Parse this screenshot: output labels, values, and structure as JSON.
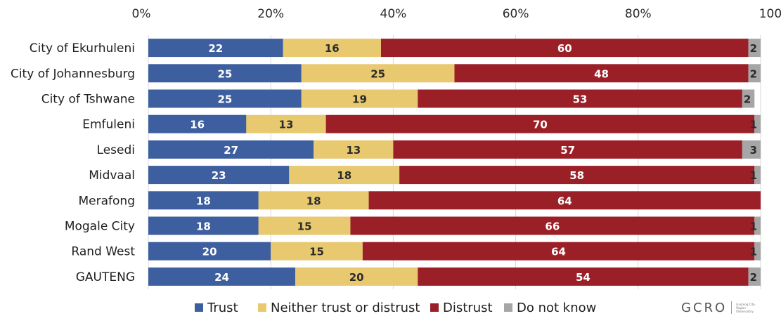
{
  "chart_data": {
    "type": "bar",
    "orientation": "horizontal",
    "stacked": true,
    "normalized": true,
    "x_ticks": [
      "0%",
      "20%",
      "40%",
      "60%",
      "80%",
      "100%"
    ],
    "xlim": [
      0,
      100
    ],
    "grid": true,
    "legend_position": "bottom",
    "categories": [
      "City of Ekurhuleni",
      "City of Johannesburg",
      "City of Tshwane",
      "Emfuleni",
      "Lesedi",
      "Midvaal",
      "Merafong",
      "Mogale City",
      "Rand West",
      "GAUTENG"
    ],
    "series": [
      {
        "name": "Trust",
        "color": "#3d5fa0",
        "label_color": "#ffffff",
        "values": [
          22,
          25,
          25,
          16,
          27,
          23,
          18,
          18,
          20,
          24
        ]
      },
      {
        "name": "Neither trust or distrust",
        "color": "#e8c96f",
        "label_color": "#2b2b2b",
        "values": [
          16,
          25,
          19,
          13,
          13,
          18,
          18,
          15,
          15,
          20
        ]
      },
      {
        "name": "Distrust",
        "color": "#9b1f27",
        "label_color": "#ffffff",
        "values": [
          60,
          48,
          53,
          70,
          57,
          58,
          64,
          66,
          64,
          54
        ]
      },
      {
        "name": "Do not know",
        "color": "#a6a6a6",
        "label_color": "#2b2b2b",
        "values": [
          2,
          2,
          2,
          1,
          3,
          1,
          null,
          1,
          1,
          2
        ]
      }
    ]
  },
  "logo": {
    "text": "GCRO",
    "subtext": "Gauteng City-Region Observatory"
  }
}
